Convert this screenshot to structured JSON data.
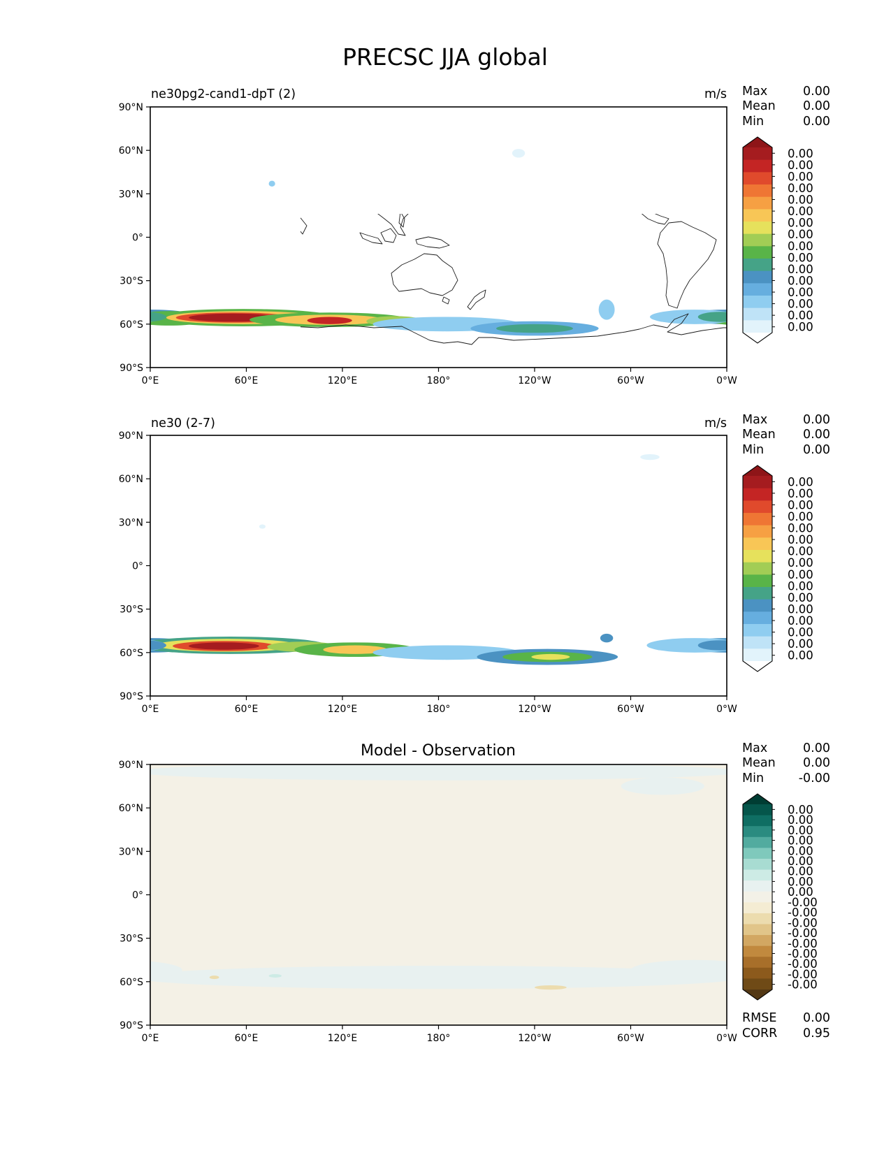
{
  "figure_title": "PRECSC JJA global",
  "longitude_ticks": [
    "0°E",
    "60°E",
    "120°E",
    "180°",
    "120°W",
    "60°W",
    "0°W"
  ],
  "latitude_ticks": [
    "90°N",
    "60°N",
    "30°N",
    "0°",
    "30°S",
    "60°S",
    "90°S"
  ],
  "colors": {
    "seq_levels": [
      "#ffffff",
      "#e2f3fb",
      "#bfe3f7",
      "#8fcdf0",
      "#66aedf",
      "#4b92c2",
      "#45a387",
      "#59b448",
      "#a2cd55",
      "#e6e15c",
      "#f8c656",
      "#f6a043",
      "#ef7634",
      "#e04a2c",
      "#c42524",
      "#a51c1f",
      "#8e1518"
    ],
    "div_levels": [
      "#533814",
      "#6f4a16",
      "#8c5a1c",
      "#a86f2a",
      "#c1893e",
      "#d2a762",
      "#e1c589",
      "#ecdcae",
      "#f4ecd3",
      "#f3f1e7",
      "#e8f1f0",
      "#cdebe5",
      "#a8dcd2",
      "#7fc9bc",
      "#52ab9f",
      "#2a8b80",
      "#0f6e63",
      "#05564b",
      "#003d33"
    ],
    "zero_diff_fill": "#f4f1e6"
  },
  "chart_data": [
    {
      "type": "heatmap",
      "subtitle": "ne30pg2-cand1-dpT (2)",
      "units": "m/s",
      "stats": [
        {
          "label": "Max",
          "value": "0.00"
        },
        {
          "label": "Mean",
          "value": "0.00"
        },
        {
          "label": "Min",
          "value": "0.00"
        }
      ],
      "colorbar_labels": [
        "0.00",
        "0.00",
        "0.00",
        "0.00",
        "0.00",
        "0.00",
        "0.00",
        "0.00",
        "0.00",
        "0.00",
        "0.00",
        "0.00",
        "0.00",
        "0.00",
        "0.00",
        "0.00"
      ],
      "colormap": "sequential",
      "xlim": [
        0,
        360
      ],
      "ylim": [
        -90,
        90
      ],
      "features": [
        {
          "lon": 0,
          "lat": -55,
          "wlon": 30,
          "hlat": 5,
          "level": 5
        },
        {
          "lon": 12,
          "lat": -56,
          "wlon": 26,
          "hlat": 5,
          "level": 7
        },
        {
          "lon": 58,
          "lat": -55.5,
          "wlon": 58,
          "hlat": 6,
          "level": 7
        },
        {
          "lon": 58,
          "lat": -55.5,
          "wlon": 48,
          "hlat": 4.5,
          "level": 10
        },
        {
          "lon": 52,
          "lat": -55.5,
          "wlon": 36,
          "hlat": 3.5,
          "level": 13
        },
        {
          "lon": 52,
          "lat": -55.5,
          "wlon": 28,
          "hlat": 2.8,
          "level": 15
        },
        {
          "lon": 112,
          "lat": -57,
          "wlon": 50,
          "hlat": 5,
          "level": 7
        },
        {
          "lon": 112,
          "lat": -57,
          "wlon": 34,
          "hlat": 3.5,
          "level": 10
        },
        {
          "lon": 112,
          "lat": -57.5,
          "wlon": 14,
          "hlat": 2.5,
          "level": 14
        },
        {
          "lon": 153,
          "lat": -58,
          "wlon": 18,
          "hlat": 3.5,
          "level": 8
        },
        {
          "lon": 185,
          "lat": -60,
          "wlon": 46,
          "hlat": 5,
          "level": 3
        },
        {
          "lon": 240,
          "lat": -63,
          "wlon": 40,
          "hlat": 5,
          "level": 4
        },
        {
          "lon": 240,
          "lat": -63,
          "wlon": 24,
          "hlat": 3,
          "level": 6
        },
        {
          "lon": 285,
          "lat": -50,
          "wlon": 5,
          "hlat": 7,
          "level": 3
        },
        {
          "lon": 340,
          "lat": -55,
          "wlon": 28,
          "hlat": 5,
          "level": 3
        },
        {
          "lon": 356,
          "lat": -55,
          "wlon": 14,
          "hlat": 3.5,
          "level": 6
        },
        {
          "lon": 230,
          "lat": 58,
          "wlon": 4,
          "hlat": 3,
          "level": 1
        },
        {
          "lon": 76,
          "lat": 37,
          "wlon": 2,
          "hlat": 2,
          "level": 3
        }
      ]
    },
    {
      "type": "heatmap",
      "subtitle": "ne30 (2-7)",
      "units": "m/s",
      "stats": [
        {
          "label": "Max",
          "value": "0.00"
        },
        {
          "label": "Mean",
          "value": "0.00"
        },
        {
          "label": "Min",
          "value": "0.00"
        }
      ],
      "colorbar_labels": [
        "0.00",
        "0.00",
        "0.00",
        "0.00",
        "0.00",
        "0.00",
        "0.00",
        "0.00",
        "0.00",
        "0.00",
        "0.00",
        "0.00",
        "0.00",
        "0.00",
        "0.00",
        "0.00"
      ],
      "colormap": "sequential",
      "xlim": [
        0,
        360
      ],
      "ylim": [
        -90,
        90
      ],
      "features": [
        {
          "lon": 0,
          "lat": -55,
          "wlon": 30,
          "hlat": 5,
          "level": 5
        },
        {
          "lon": 50,
          "lat": -55,
          "wlon": 60,
          "hlat": 6,
          "level": 6
        },
        {
          "lon": 48,
          "lat": -55,
          "wlon": 44,
          "hlat": 4.5,
          "level": 9
        },
        {
          "lon": 46,
          "lat": -55.5,
          "wlon": 32,
          "hlat": 3.5,
          "level": 13
        },
        {
          "lon": 46,
          "lat": -55.5,
          "wlon": 22,
          "hlat": 2.5,
          "level": 15
        },
        {
          "lon": 95,
          "lat": -56,
          "wlon": 22,
          "hlat": 3.5,
          "level": 8
        },
        {
          "lon": 128,
          "lat": -58,
          "wlon": 38,
          "hlat": 5,
          "level": 7
        },
        {
          "lon": 128,
          "lat": -58,
          "wlon": 20,
          "hlat": 3,
          "level": 10
        },
        {
          "lon": 185,
          "lat": -60,
          "wlon": 46,
          "hlat": 5,
          "level": 3
        },
        {
          "lon": 248,
          "lat": -63,
          "wlon": 44,
          "hlat": 5.5,
          "level": 5
        },
        {
          "lon": 248,
          "lat": -63,
          "wlon": 28,
          "hlat": 3.5,
          "level": 7
        },
        {
          "lon": 250,
          "lat": -63,
          "wlon": 12,
          "hlat": 2,
          "level": 9
        },
        {
          "lon": 285,
          "lat": -50,
          "wlon": 4,
          "hlat": 3,
          "level": 5
        },
        {
          "lon": 340,
          "lat": -55,
          "wlon": 30,
          "hlat": 5,
          "level": 3
        },
        {
          "lon": 356,
          "lat": -55,
          "wlon": 14,
          "hlat": 3.5,
          "level": 5
        },
        {
          "lon": 312,
          "lat": 75,
          "wlon": 6,
          "hlat": 2,
          "level": 1
        },
        {
          "lon": 70,
          "lat": 27,
          "wlon": 2,
          "hlat": 1.5,
          "level": 1
        }
      ]
    },
    {
      "type": "heatmap",
      "subtitle": "Model - Observation",
      "units": "",
      "stats": [
        {
          "label": "Max",
          "value": "0.00"
        },
        {
          "label": "Mean",
          "value": "0.00"
        },
        {
          "label": "Min",
          "value": "-0.00"
        }
      ],
      "colorbar_labels": [
        "0.00",
        "0.00",
        "0.00",
        "0.00",
        "0.00",
        "0.00",
        "0.00",
        "0.00",
        "0.00",
        "-0.00",
        "-0.00",
        "-0.00",
        "-0.00",
        "-0.00",
        "-0.00",
        "-0.00",
        "-0.00",
        "-0.00"
      ],
      "colormap": "diverging",
      "xlim": [
        0,
        360
      ],
      "ylim": [
        -90,
        90
      ],
      "features": [
        {
          "lon": 180,
          "lat": -57,
          "wlon": 190,
          "hlat": 8,
          "level": 10
        },
        {
          "lon": 340,
          "lat": -52,
          "wlon": 40,
          "hlat": 7,
          "level": 10
        },
        {
          "lon": 180,
          "lat": 85,
          "wlon": 190,
          "hlat": 6,
          "level": 10
        },
        {
          "lon": 320,
          "lat": 75,
          "wlon": 26,
          "hlat": 6,
          "level": 10
        },
        {
          "lon": 250,
          "lat": -64,
          "wlon": 10,
          "hlat": 1.5,
          "level": 7
        },
        {
          "lon": 40,
          "lat": -57,
          "wlon": 3,
          "hlat": 1.2,
          "level": 7
        },
        {
          "lon": 78,
          "lat": -56,
          "wlon": 4,
          "hlat": 1.2,
          "level": 11
        }
      ],
      "metrics": [
        {
          "label": "RMSE",
          "value": "0.00"
        },
        {
          "label": "CORR",
          "value": "0.95"
        }
      ]
    }
  ]
}
